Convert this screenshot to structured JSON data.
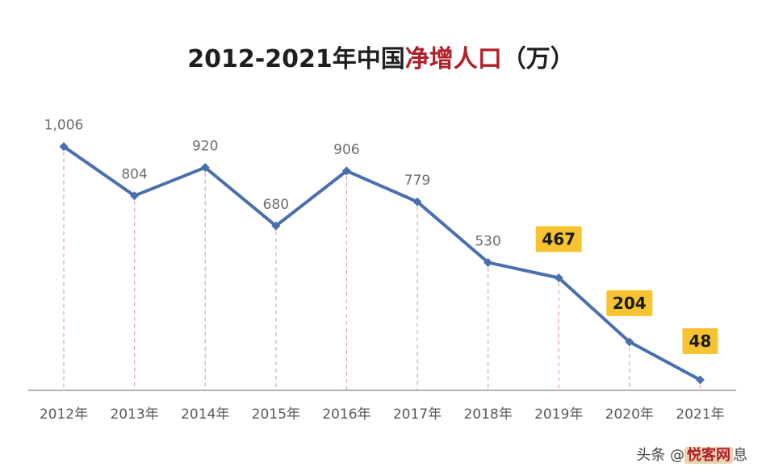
{
  "title": {
    "prefix": "2012-2021年中国",
    "highlight": "净增人口",
    "suffix": "（万）"
  },
  "colors": {
    "line": "#4a6fae",
    "title_highlight": "#b0202a",
    "badge": "#f7c331",
    "axis": "#9a9a9a",
    "dashed": "#e5a3a3"
  },
  "watermark": {
    "prefix": "头条 @",
    "accent": "悦客网",
    "suffix": "息"
  },
  "chart_data": {
    "type": "line",
    "categories": [
      "2012年",
      "2013年",
      "2014年",
      "2015年",
      "2016年",
      "2017年",
      "2018年",
      "2019年",
      "2020年",
      "2021年"
    ],
    "values": [
      1006,
      804,
      920,
      680,
      906,
      779,
      530,
      467,
      204,
      48
    ],
    "data_labels": [
      "1,006",
      "804",
      "920",
      "680",
      "906",
      "779",
      "530",
      "467",
      "204",
      "48"
    ],
    "highlighted_indices": [
      7,
      8,
      9
    ],
    "title": "2012-2021年中国净增人口（万）",
    "xlabel": "",
    "ylabel": "",
    "ylim": [
      0,
      1100
    ],
    "grid": false,
    "legend": "none"
  }
}
